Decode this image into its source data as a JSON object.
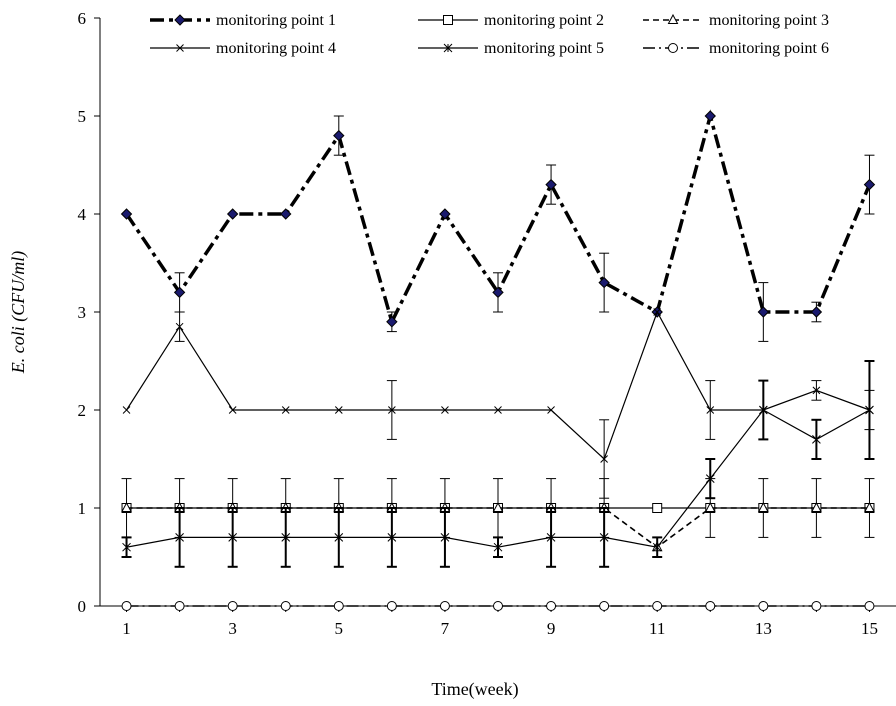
{
  "chart_data": {
    "type": "line",
    "title": "",
    "xlabel": "Time(week)",
    "ylabel": "E. coli (CFU/ml)",
    "xlim": [
      0.5,
      15.5
    ],
    "ylim": [
      0,
      6
    ],
    "x_ticks": [
      1,
      3,
      5,
      7,
      9,
      11,
      13,
      15
    ],
    "y_ticks": [
      0,
      1,
      2,
      3,
      4,
      5,
      6
    ],
    "grid": false,
    "legend_position": "top",
    "x": [
      1,
      2,
      3,
      4,
      5,
      6,
      7,
      8,
      9,
      10,
      11,
      12,
      13,
      14,
      15
    ],
    "series": [
      {
        "name": "monitoring point 1",
        "values": [
          4.0,
          3.2,
          4.0,
          4.0,
          4.8,
          2.9,
          4.0,
          3.2,
          4.3,
          3.3,
          3.0,
          5.0,
          3.0,
          3.0,
          4.3
        ],
        "errors": [
          0,
          0.2,
          0,
          0,
          0.2,
          0.1,
          0,
          0.2,
          0.2,
          0.3,
          0,
          0,
          0.3,
          0.1,
          0.3
        ],
        "marker": "diamond-filled",
        "line_style": "dash-dot-bold",
        "color": "#000000",
        "marker_color": "#1a1a6e"
      },
      {
        "name": "monitoring point 2",
        "values": [
          1,
          1,
          1,
          1,
          1,
          1,
          1,
          1,
          1,
          1,
          1,
          1,
          1,
          1,
          1
        ],
        "errors": [
          0.3,
          0.3,
          0.3,
          0.3,
          0.3,
          0.3,
          0.3,
          0.3,
          0.3,
          0.3,
          0,
          0.3,
          0.3,
          0.3,
          0.3
        ],
        "marker": "square-open",
        "line_style": "solid",
        "color": "#000000"
      },
      {
        "name": "monitoring point 3",
        "values": [
          1,
          1,
          1,
          1,
          1,
          1,
          1,
          1,
          1,
          1,
          0.6,
          1,
          1,
          1,
          1
        ],
        "errors": [
          0,
          0,
          0,
          0,
          0,
          0,
          0,
          0,
          0,
          0,
          0,
          0,
          0,
          0,
          0
        ],
        "marker": "triangle-open",
        "line_style": "dashed",
        "color": "#000000"
      },
      {
        "name": "monitoring point 4",
        "values": [
          2,
          2.85,
          2,
          2,
          2,
          2,
          2,
          2,
          2,
          1.5,
          3.0,
          2,
          2,
          2.2,
          2
        ],
        "errors": [
          0,
          0.15,
          0,
          0,
          0,
          0.3,
          0,
          0,
          0,
          0.4,
          0,
          0.3,
          0,
          0.1,
          0.2
        ],
        "marker": "x",
        "line_style": "solid",
        "color": "#000000"
      },
      {
        "name": "monitoring point 5",
        "values": [
          0.6,
          0.7,
          0.7,
          0.7,
          0.7,
          0.7,
          0.7,
          0.6,
          0.7,
          0.7,
          0.6,
          1.3,
          2.0,
          1.7,
          2.0
        ],
        "errors": [
          0.1,
          0.3,
          0.3,
          0.3,
          0.3,
          0.3,
          0.3,
          0.1,
          0.3,
          0.3,
          0.1,
          0.2,
          0.3,
          0.2,
          0.5
        ],
        "marker": "asterisk",
        "line_style": "solid",
        "color": "#000000"
      },
      {
        "name": "monitoring point 6",
        "values": [
          0,
          0,
          0,
          0,
          0,
          0,
          0,
          0,
          0,
          0,
          0,
          0,
          0,
          0,
          0
        ],
        "errors": [
          0,
          0,
          0,
          0,
          0,
          0,
          0,
          0,
          0,
          0,
          0,
          0,
          0,
          0,
          0
        ],
        "marker": "circle-open",
        "line_style": "dash-dot",
        "color": "#000000"
      }
    ]
  }
}
